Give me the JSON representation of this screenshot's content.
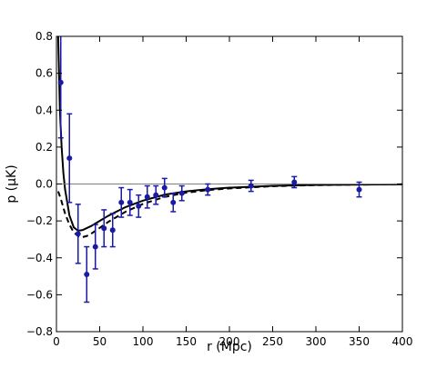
{
  "chart_data": {
    "type": "scatter",
    "title": "",
    "xlabel": "r (Mpc)",
    "ylabel": "p (μK)",
    "xlim": [
      0,
      400
    ],
    "ylim": [
      -0.8,
      0.8
    ],
    "xticks": [
      0,
      50,
      100,
      150,
      200,
      250,
      300,
      350,
      400
    ],
    "yticks": [
      -0.8,
      -0.6,
      -0.4,
      -0.2,
      0.0,
      0.2,
      0.4,
      0.6,
      0.8
    ],
    "xtick_labels": [
      "0",
      "50",
      "100",
      "150",
      "200",
      "250",
      "300",
      "350",
      "400"
    ],
    "ytick_labels": [
      "−0.8",
      "−0.6",
      "−0.4",
      "−0.2",
      "0.0",
      "0.2",
      "0.4",
      "0.6",
      "0.8"
    ],
    "grid": false,
    "zero_line": 0,
    "colors": {
      "points": "#1a1aa6",
      "models": "#000000",
      "zero_line": "#808080"
    },
    "series": [
      {
        "kind": "points_with_errorbars",
        "x": [
          5,
          15,
          25,
          35,
          45,
          55,
          65,
          75,
          85,
          95,
          105,
          115,
          125,
          135,
          145,
          175,
          225,
          275,
          350
        ],
        "y": [
          0.55,
          0.14,
          -0.27,
          -0.49,
          -0.34,
          -0.24,
          -0.25,
          -0.1,
          -0.1,
          -0.12,
          -0.07,
          -0.06,
          -0.02,
          -0.1,
          -0.05,
          -0.03,
          -0.01,
          0.01,
          -0.03
        ],
        "yerr": [
          0.3,
          0.24,
          0.16,
          0.15,
          0.12,
          0.1,
          0.09,
          0.08,
          0.07,
          0.06,
          0.06,
          0.05,
          0.05,
          0.05,
          0.04,
          0.03,
          0.03,
          0.03,
          0.04
        ]
      },
      {
        "kind": "line_solid",
        "x": [
          2,
          4,
          6,
          8,
          10,
          15,
          20,
          25,
          30,
          40,
          50,
          60,
          80,
          100,
          125,
          150,
          175,
          200,
          250,
          300,
          350,
          400
        ],
        "y": [
          0.8,
          0.4,
          0.2,
          0.06,
          -0.03,
          -0.17,
          -0.235,
          -0.253,
          -0.25,
          -0.228,
          -0.2,
          -0.172,
          -0.125,
          -0.09,
          -0.058,
          -0.04,
          -0.028,
          -0.02,
          -0.01,
          -0.005,
          -0.003,
          -0.002
        ]
      },
      {
        "kind": "line_dashed",
        "x": [
          2,
          5,
          10,
          15,
          20,
          25,
          30,
          35,
          40,
          50,
          60,
          80,
          100,
          125,
          150,
          175,
          200,
          250,
          300,
          350,
          400
        ],
        "y": [
          -0.04,
          -0.08,
          -0.16,
          -0.22,
          -0.262,
          -0.282,
          -0.288,
          -0.282,
          -0.27,
          -0.238,
          -0.205,
          -0.15,
          -0.108,
          -0.07,
          -0.047,
          -0.033,
          -0.024,
          -0.012,
          -0.006,
          -0.003,
          -0.002
        ]
      }
    ]
  }
}
